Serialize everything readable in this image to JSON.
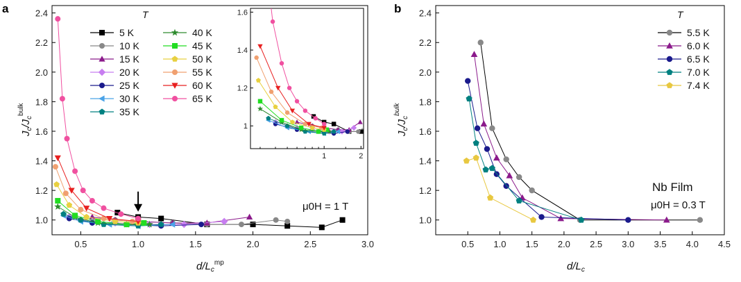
{
  "chart_data": [
    {
      "id": "a",
      "type": "line",
      "panel_label": "a",
      "xlabel": {
        "main": "d/L",
        "sub": "c",
        "sup": "mp"
      },
      "ylabel": {
        "main": "J",
        "sub": "c",
        "mid": "/J",
        "sub2": "c",
        "sup": "bulk"
      },
      "xlim": [
        0.25,
        3.0
      ],
      "ylim": [
        0.9,
        2.45
      ],
      "xticks": [
        "0.5",
        "1.0",
        "1.5",
        "2.0",
        "2.5",
        "3.0"
      ],
      "yticks": [
        "1.0",
        "1.2",
        "1.4",
        "1.6",
        "1.8",
        "2.0",
        "2.2",
        "2.4"
      ],
      "legend_title": "T",
      "annotation": "μ0H = 1 T",
      "arrow_at": {
        "x": 1.0,
        "y": 1.07
      },
      "series": [
        {
          "name": "5 K",
          "color": "#000000",
          "marker": "square",
          "x": [
            0.82,
            1.0,
            1.2,
            1.6,
            2.0,
            2.3,
            2.6,
            2.78
          ],
          "y": [
            1.05,
            1.02,
            1.01,
            0.97,
            0.97,
            0.96,
            0.95,
            1.0
          ]
        },
        {
          "name": "10 K",
          "color": "#888888",
          "marker": "circle",
          "x": [
            0.8,
            1.0,
            1.3,
            1.6,
            1.9,
            2.2,
            2.3
          ],
          "y": [
            1.0,
            0.99,
            0.98,
            0.97,
            0.97,
            1.0,
            0.99
          ]
        },
        {
          "name": "15 K",
          "color": "#8b1a8b",
          "marker": "triangle",
          "x": [
            0.6,
            0.8,
            1.0,
            1.3,
            1.6,
            1.97
          ],
          "y": [
            1.02,
            1.0,
            0.99,
            0.98,
            0.98,
            1.02
          ]
        },
        {
          "name": "20 K",
          "color": "#c77df0",
          "marker": "diamond",
          "x": [
            0.4,
            0.6,
            0.8,
            1.1,
            1.4,
            1.75
          ],
          "y": [
            1.02,
            0.99,
            0.98,
            0.97,
            0.97,
            0.99
          ]
        },
        {
          "name": "25 K",
          "color": "#1a1a8c",
          "marker": "circle",
          "x": [
            0.4,
            0.6,
            0.9,
            1.2,
            1.55
          ],
          "y": [
            1.01,
            0.98,
            0.97,
            0.96,
            0.97
          ]
        },
        {
          "name": "30 K",
          "color": "#4aa3e8",
          "marker": "triangle-left",
          "x": [
            0.35,
            0.5,
            0.75,
            1.0,
            1.3
          ],
          "y": [
            1.03,
            0.99,
            0.97,
            0.96,
            0.97
          ]
        },
        {
          "name": "35 K",
          "color": "#008080",
          "marker": "pentagon",
          "x": [
            0.35,
            0.5,
            0.7,
            1.0,
            1.2
          ],
          "y": [
            1.04,
            1.0,
            0.97,
            0.96,
            0.97
          ]
        },
        {
          "name": "40 K",
          "color": "#2e8b2e",
          "marker": "star",
          "x": [
            0.3,
            0.45,
            0.65,
            0.9,
            1.1
          ],
          "y": [
            1.09,
            1.02,
            0.98,
            0.97,
            0.97
          ]
        },
        {
          "name": "45 K",
          "color": "#22dd22",
          "marker": "square",
          "x": [
            0.3,
            0.45,
            0.65,
            0.9,
            1.05
          ],
          "y": [
            1.13,
            1.03,
            0.99,
            0.97,
            0.98
          ]
        },
        {
          "name": "50 K",
          "color": "#e8d040",
          "marker": "pentagon",
          "x": [
            0.29,
            0.4,
            0.55,
            0.8,
            1.0
          ],
          "y": [
            1.24,
            1.1,
            1.02,
            0.99,
            0.98
          ]
        },
        {
          "name": "55 K",
          "color": "#f0a070",
          "marker": "circle",
          "x": [
            0.28,
            0.37,
            0.5,
            0.7,
            0.95
          ],
          "y": [
            1.36,
            1.18,
            1.07,
            1.01,
            0.99
          ]
        },
        {
          "name": "60 K",
          "color": "#e82020",
          "marker": "triangle-down",
          "x": [
            0.3,
            0.42,
            0.55,
            0.75,
            1.0
          ],
          "y": [
            1.42,
            1.2,
            1.08,
            1.01,
            0.99
          ]
        },
        {
          "name": "65 K",
          "color": "#f050a0",
          "marker": "circle",
          "x": [
            0.3,
            0.34,
            0.38,
            0.45,
            0.52,
            0.6,
            0.7,
            0.85,
            1.0
          ],
          "y": [
            2.36,
            1.82,
            1.55,
            1.33,
            1.2,
            1.13,
            1.08,
            1.04,
            1.01
          ]
        }
      ],
      "inset": {
        "xticks": [
          "1",
          "2"
        ],
        "yticks": [
          "1",
          "1.2",
          "1.4",
          "1.6"
        ],
        "xlim": [
          0.25,
          2.1
        ],
        "ylim": [
          0.88,
          1.62
        ]
      }
    },
    {
      "id": "b",
      "type": "line",
      "panel_label": "b",
      "xlabel": {
        "main": "d/L",
        "sub": "c"
      },
      "ylabel": {
        "main": "J",
        "sub": "c",
        "mid": "/J",
        "sub2": "c",
        "sup": "bulk"
      },
      "xlim": [
        0.0,
        4.5
      ],
      "ylim": [
        0.9,
        2.45
      ],
      "xticks": [
        "0.5",
        "1.0",
        "1.5",
        "2.0",
        "2.5",
        "3.0",
        "3.5",
        "4.0",
        "4.5"
      ],
      "yticks": [
        "1.0",
        "1.2",
        "1.4",
        "1.6",
        "1.8",
        "2.0",
        "2.2",
        "2.4"
      ],
      "legend_title": "T",
      "annotation_line1": "Nb Film",
      "annotation_line2": "μ0H = 0.3 T",
      "series": [
        {
          "name": "5.5 K",
          "color": "#888888",
          "marker": "circle",
          "x": [
            0.7,
            0.88,
            1.1,
            1.3,
            1.5,
            2.25,
            4.12
          ],
          "y": [
            2.2,
            1.62,
            1.41,
            1.29,
            1.2,
            1.0,
            1.0
          ]
        },
        {
          "name": "6.0 K",
          "color": "#8b1a8b",
          "marker": "triangle",
          "x": [
            0.6,
            0.75,
            0.95,
            1.15,
            1.35,
            1.95,
            3.6
          ],
          "y": [
            2.12,
            1.65,
            1.42,
            1.3,
            1.15,
            1.01,
            1.0
          ]
        },
        {
          "name": "6.5 K",
          "color": "#1a1a8c",
          "marker": "circle",
          "x": [
            0.5,
            0.65,
            0.8,
            0.95,
            1.1,
            1.65,
            3.0
          ],
          "y": [
            1.94,
            1.62,
            1.48,
            1.31,
            1.23,
            1.02,
            1.0
          ]
        },
        {
          "name": "7.0 K",
          "color": "#008080",
          "marker": "pentagon",
          "x": [
            0.52,
            0.63,
            0.78,
            0.88,
            1.3,
            2.27
          ],
          "y": [
            1.82,
            1.52,
            1.34,
            1.35,
            1.13,
            1.0
          ]
        },
        {
          "name": "7.4 K",
          "color": "#e8c840",
          "marker": "pentagon",
          "x": [
            0.48,
            0.63,
            0.85,
            1.52
          ],
          "y": [
            1.4,
            1.42,
            1.15,
            1.0
          ]
        }
      ]
    }
  ]
}
